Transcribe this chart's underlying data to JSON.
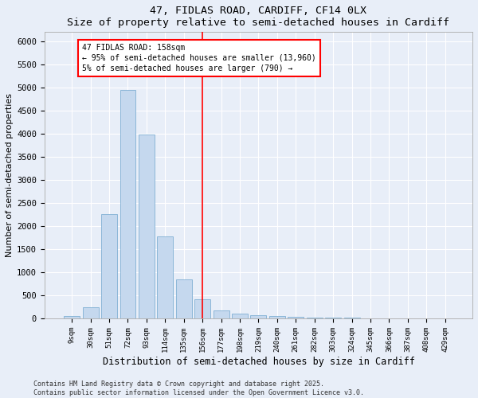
{
  "title1": "47, FIDLAS ROAD, CARDIFF, CF14 0LX",
  "title2": "Size of property relative to semi-detached houses in Cardiff",
  "xlabel": "Distribution of semi-detached houses by size in Cardiff",
  "ylabel": "Number of semi-detached properties",
  "categories": [
    "9sqm",
    "30sqm",
    "51sqm",
    "72sqm",
    "93sqm",
    "114sqm",
    "135sqm",
    "156sqm",
    "177sqm",
    "198sqm",
    "219sqm",
    "240sqm",
    "261sqm",
    "282sqm",
    "303sqm",
    "324sqm",
    "345sqm",
    "366sqm",
    "387sqm",
    "408sqm",
    "429sqm"
  ],
  "values": [
    50,
    250,
    2250,
    4950,
    3980,
    1780,
    850,
    420,
    175,
    110,
    70,
    55,
    35,
    25,
    15,
    10,
    8,
    5,
    3,
    2,
    1
  ],
  "bar_color": "#c5d8ee",
  "bar_edge_color": "#7fafd4",
  "annotation_line1": "47 FIDLAS ROAD: 158sqm",
  "annotation_line2": "← 95% of semi-detached houses are smaller (13,960)",
  "annotation_line3": "5% of semi-detached houses are larger (790) →",
  "ylim": [
    0,
    6200
  ],
  "yticks": [
    0,
    500,
    1000,
    1500,
    2000,
    2500,
    3000,
    3500,
    4000,
    4500,
    5000,
    5500,
    6000
  ],
  "vline_index": 7,
  "footer1": "Contains HM Land Registry data © Crown copyright and database right 2025.",
  "footer2": "Contains public sector information licensed under the Open Government Licence v3.0.",
  "bg_color": "#e8eef8",
  "plot_bg_color": "#e8eef8"
}
